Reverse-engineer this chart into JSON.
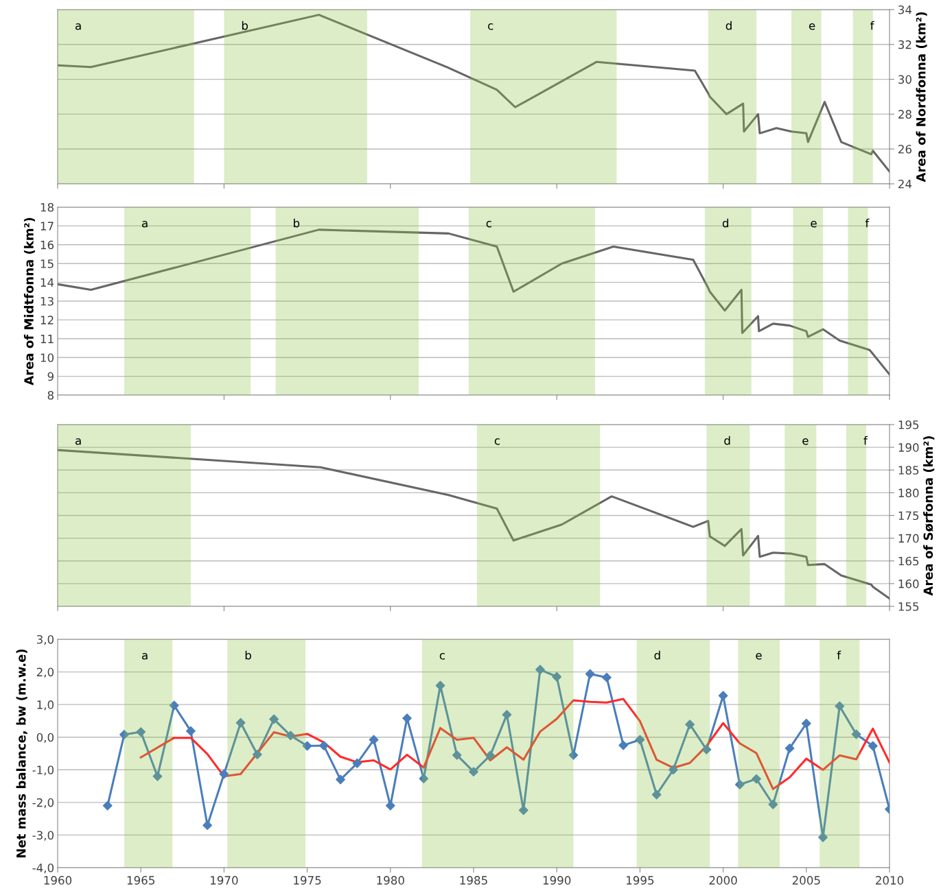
{
  "chart_data": [
    {
      "type": "line",
      "ylabel": "Area of Nordfonna (km²)",
      "tick_labels": "y",
      "grid": "y",
      "xlim": [
        1960,
        2010
      ],
      "xticks": [
        {
          "value": 1960,
          "label": null
        },
        {
          "value": 1970,
          "label": null
        },
        {
          "value": 1980,
          "label": null
        },
        {
          "value": 1990,
          "label": null
        },
        {
          "value": 2000,
          "label": null
        },
        {
          "value": 2010,
          "label": null
        }
      ],
      "ylim": [
        24,
        34
      ],
      "yticks": [
        24,
        26,
        28,
        30,
        32,
        34
      ],
      "series": [
        {
          "color": "#666666",
          "x": [
            1960.0,
            1962.0,
            1975.7,
            1983.4,
            1986.4,
            1987.5,
            1992.4,
            1998.3,
            1999.1,
            1999.2,
            2000.2,
            2001.2,
            2001.25,
            2002.1,
            2002.2,
            2003.2,
            2004.1,
            2005.0,
            2005.1,
            2006.1,
            2007.1,
            2008.9,
            2009.0,
            2010.0
          ],
          "values": [
            30.8,
            30.7,
            33.7,
            30.7,
            29.4,
            28.4,
            31.0,
            30.5,
            29.2,
            29.0,
            28.0,
            28.6,
            27.0,
            28.0,
            26.9,
            27.2,
            27.0,
            26.9,
            26.4,
            28.7,
            26.4,
            25.7,
            25.9,
            24.7
          ]
        }
      ],
      "bands": [
        {
          "axis": "x",
          "from": 1960.0,
          "to": 1968.2,
          "label": "a",
          "color": "#8ac348"
        },
        {
          "axis": "x",
          "from": 1970.0,
          "to": 1978.6,
          "label": "b",
          "color": "#8ac348"
        },
        {
          "axis": "x",
          "from": 1984.8,
          "to": 1993.6,
          "label": "c",
          "color": "#8ac348"
        },
        {
          "axis": "x",
          "from": 1999.1,
          "to": 2002.0,
          "label": "d",
          "color": "#8ac348"
        },
        {
          "axis": "x",
          "from": 2004.1,
          "to": 2005.9,
          "label": "e",
          "color": "#8ac348"
        },
        {
          "axis": "x",
          "from": 2007.8,
          "to": 2009.0,
          "label": "f",
          "color": "#8ac348"
        }
      ]
    },
    {
      "type": "line",
      "ylabel": "Area of Midtfonna (km²)",
      "tick_labels": "y",
      "grid": "y",
      "xlim": [
        1960,
        2010
      ],
      "xticks": [
        {
          "value": 1960,
          "label": null
        },
        {
          "value": 1970,
          "label": null
        },
        {
          "value": 1980,
          "label": null
        },
        {
          "value": 1990,
          "label": null
        },
        {
          "value": 2000,
          "label": null
        },
        {
          "value": 2010,
          "label": null
        }
      ],
      "ylim": [
        8,
        18
      ],
      "yticks": [
        8,
        9,
        10,
        11,
        12,
        13,
        14,
        15,
        16,
        17,
        18
      ],
      "series": [
        {
          "color": "#666666",
          "x": [
            1960.0,
            1962.0,
            1975.7,
            1983.5,
            1986.4,
            1987.4,
            1990.3,
            1993.4,
            1998.2,
            1999.1,
            1999.2,
            2000.1,
            2001.1,
            2001.15,
            2002.1,
            2002.15,
            2003.0,
            2004.0,
            2005.0,
            2005.1,
            2006.0,
            2007.0,
            2008.8,
            2008.9,
            2010.0
          ],
          "values": [
            13.9,
            13.6,
            16.8,
            16.6,
            15.9,
            13.5,
            15.0,
            15.9,
            15.2,
            13.7,
            13.5,
            12.5,
            13.6,
            11.3,
            12.2,
            11.4,
            11.8,
            11.7,
            11.4,
            11.1,
            11.5,
            10.9,
            10.4,
            10.3,
            9.1
          ]
        }
      ],
      "bands": [
        {
          "axis": "x",
          "from": 1964.0,
          "to": 1971.6,
          "label": "a",
          "color": "#8ac348"
        },
        {
          "axis": "x",
          "from": 1973.1,
          "to": 1981.7,
          "label": "b",
          "color": "#8ac348"
        },
        {
          "axis": "x",
          "from": 1984.7,
          "to": 1992.3,
          "label": "c",
          "color": "#8ac348"
        },
        {
          "axis": "x",
          "from": 1998.9,
          "to": 2001.7,
          "label": "d",
          "color": "#8ac348"
        },
        {
          "axis": "x",
          "from": 2004.2,
          "to": 2006.0,
          "label": "e",
          "color": "#8ac348"
        },
        {
          "axis": "x",
          "from": 2007.5,
          "to": 2008.7,
          "label": "f",
          "color": "#8ac348"
        }
      ]
    },
    {
      "type": "line",
      "ylabel": "Area of Sørfonna (km²)",
      "tick_labels": "y",
      "grid": "y",
      "xlim": [
        1960,
        2010
      ],
      "xticks": [
        {
          "value": 1960,
          "label": null
        },
        {
          "value": 1970,
          "label": null
        },
        {
          "value": 1980,
          "label": null
        },
        {
          "value": 1990,
          "label": null
        },
        {
          "value": 2000,
          "label": null
        },
        {
          "value": 2010,
          "label": null
        }
      ],
      "ylim": [
        155,
        195
      ],
      "yticks": [
        155,
        160,
        165,
        170,
        175,
        180,
        185,
        190,
        195
      ],
      "series": [
        {
          "color": "#666666",
          "x": [
            1960.0,
            1975.8,
            1983.5,
            1986.4,
            1987.4,
            1990.3,
            1993.3,
            1998.2,
            1999.1,
            1999.2,
            2000.1,
            2001.1,
            2001.2,
            2002.1,
            2002.2,
            2003.0,
            2004.1,
            2005.0,
            2005.1,
            2006.1,
            2007.1,
            2008.9,
            2009.0,
            2010.0
          ],
          "values": [
            189.4,
            185.6,
            179.5,
            176.5,
            169.5,
            173.0,
            179.2,
            172.5,
            173.8,
            170.4,
            168.3,
            172.0,
            166.2,
            170.5,
            165.9,
            166.8,
            166.6,
            165.9,
            164.1,
            164.3,
            161.8,
            159.8,
            159.3,
            156.7
          ]
        }
      ],
      "bands": [
        {
          "axis": "x",
          "from": 1960.0,
          "to": 1968.0,
          "label": "a",
          "color": "#8ac348"
        },
        {
          "axis": "x",
          "from": 1985.2,
          "to": 1992.6,
          "label": "c",
          "color": "#8ac348"
        },
        {
          "axis": "x",
          "from": 1999.0,
          "to": 2001.6,
          "label": "d",
          "color": "#8ac348"
        },
        {
          "axis": "x",
          "from": 2003.7,
          "to": 2005.6,
          "label": "e",
          "color": "#8ac348"
        },
        {
          "axis": "x",
          "from": 2007.4,
          "to": 2008.6,
          "label": "f",
          "color": "#8ac348"
        }
      ]
    },
    {
      "type": "line",
      "ylabel": "Net mass balance, bw (m.w.e)",
      "grid": "y",
      "xlim": [
        1960,
        2010
      ],
      "xticks": [
        1960,
        1965,
        1970,
        1975,
        1980,
        1985,
        1990,
        1995,
        2000,
        2005,
        2010
      ],
      "ylim": [
        -4,
        3
      ],
      "yticks": [
        {
          "value": -4,
          "label": "-4,0"
        },
        {
          "value": -3,
          "label": "-3,0"
        },
        {
          "value": -2,
          "label": "-2,0"
        },
        {
          "value": -1,
          "label": "-1,0"
        },
        {
          "value": 0,
          "label": "0,0"
        },
        {
          "value": 1,
          "label": "1,0"
        },
        {
          "value": 2,
          "label": "2,0"
        },
        {
          "value": 3,
          "label": "3,0"
        }
      ],
      "series": [
        {
          "color": "#4a7ebb",
          "marker": "diamond",
          "x": [
            1963,
            1964,
            1965,
            1966,
            1967,
            1968,
            1969,
            1970,
            1971,
            1972,
            1973,
            1974,
            1975,
            1976,
            1977,
            1978,
            1979,
            1980,
            1981,
            1982,
            1983,
            1984,
            1985,
            1986,
            1987,
            1988,
            1989,
            1990,
            1991,
            1992,
            1993,
            1994,
            1995,
            1996,
            1997,
            1998,
            1999,
            2000,
            2001,
            2002,
            2003,
            2004,
            2005,
            2006,
            2007,
            2008,
            2009,
            2010
          ],
          "values": [
            -2.1,
            0.08,
            0.16,
            -1.2,
            0.97,
            0.19,
            -2.7,
            -1.13,
            0.44,
            -0.53,
            0.55,
            0.05,
            -0.27,
            -0.26,
            -1.3,
            -0.8,
            -0.08,
            -2.1,
            0.58,
            -1.27,
            1.58,
            -0.55,
            -1.06,
            -0.56,
            0.69,
            -2.24,
            2.07,
            1.85,
            -0.55,
            1.94,
            1.83,
            -0.25,
            -0.08,
            -1.76,
            -1.0,
            0.39,
            -0.38,
            1.27,
            -1.45,
            -1.28,
            -2.06,
            -0.34,
            0.42,
            -3.07,
            0.95,
            0.09,
            -0.27,
            -2.21
          ]
        },
        {
          "color": "#ff2a2a",
          "x": [
            1965,
            1967,
            1968,
            1969,
            1970,
            1971,
            1973,
            1974,
            1975,
            1976,
            1977,
            1978,
            1979,
            1980,
            1981,
            1982,
            1983,
            1984,
            1985,
            1986,
            1987,
            1988,
            1989,
            1990,
            1991,
            1992,
            1993,
            1994,
            1995,
            1996,
            1997,
            1998,
            1999,
            2000,
            2001,
            2002,
            2003,
            2004,
            2005,
            2006,
            2007,
            2008,
            2009,
            2010
          ],
          "values": [
            -0.62,
            -0.02,
            -0.02,
            -0.52,
            -1.2,
            -1.13,
            0.15,
            0.02,
            0.1,
            -0.16,
            -0.6,
            -0.77,
            -0.71,
            -0.99,
            -0.54,
            -0.93,
            0.28,
            -0.08,
            -0.02,
            -0.71,
            -0.31,
            -0.69,
            0.17,
            0.56,
            1.13,
            1.08,
            1.06,
            1.17,
            0.49,
            -0.69,
            -0.94,
            -0.79,
            -0.27,
            0.43,
            -0.19,
            -0.49,
            -1.59,
            -1.23,
            -0.66,
            -1.0,
            -0.56,
            -0.68,
            0.26,
            -0.78
          ]
        }
      ],
      "bands": [
        {
          "axis": "x",
          "from": 1964.0,
          "to": 1966.9,
          "label": "a",
          "color": "#8ac348"
        },
        {
          "axis": "x",
          "from": 1970.2,
          "to": 1974.9,
          "label": "b",
          "color": "#8ac348"
        },
        {
          "axis": "x",
          "from": 1981.9,
          "to": 1991.0,
          "label": "c",
          "color": "#8ac348"
        },
        {
          "axis": "x",
          "from": 1994.8,
          "to": 1999.2,
          "label": "d",
          "color": "#8ac348"
        },
        {
          "axis": "x",
          "from": 2000.9,
          "to": 2003.4,
          "label": "e",
          "color": "#8ac348"
        },
        {
          "axis": "x",
          "from": 2005.8,
          "to": 2008.2,
          "label": "f",
          "color": "#8ac348"
        }
      ]
    }
  ]
}
